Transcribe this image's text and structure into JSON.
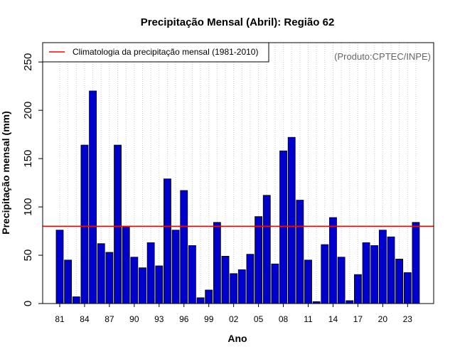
{
  "chart_data": {
    "type": "bar",
    "title": "Precipitação Mensal (Abril): Região 62",
    "xlabel": "Ano",
    "ylabel": "Precipitação mensal (mm)",
    "ylim": [
      0,
      270
    ],
    "yticks": [
      0,
      50,
      100,
      150,
      200,
      250
    ],
    "grid": "vertical dotted",
    "credit": "(Produto:CPTEC/INPE)",
    "years": [
      1981,
      1982,
      1983,
      1984,
      1985,
      1986,
      1987,
      1988,
      1989,
      1990,
      1991,
      1992,
      1993,
      1994,
      1995,
      1996,
      1997,
      1998,
      1999,
      2000,
      2001,
      2002,
      2003,
      2004,
      2005,
      2006,
      2007,
      2008,
      2009,
      2010,
      2011,
      2012,
      2013,
      2014,
      2015,
      2016,
      2017,
      2018,
      2019,
      2020,
      2021,
      2022,
      2023,
      2024
    ],
    "tick_labels": [
      "81",
      "84",
      "87",
      "90",
      "93",
      "96",
      "99",
      "02",
      "05",
      "08",
      "11",
      "14",
      "17",
      "20",
      "23"
    ],
    "values": [
      76,
      45,
      7,
      164,
      220,
      62,
      53,
      164,
      80,
      48,
      37,
      63,
      39,
      129,
      76,
      117,
      60,
      6,
      14,
      84,
      49,
      31,
      35,
      51,
      90,
      112,
      41,
      158,
      172,
      107,
      45,
      2,
      61,
      89,
      48,
      3,
      30,
      63,
      60,
      76,
      69,
      46,
      32,
      84
    ],
    "bar_color": "#0000cc",
    "climatology": {
      "label": "Climatologia da precipitação mensal (1981-2010)",
      "value": 80,
      "color": "#ff0000"
    },
    "legend_position": "top-left"
  }
}
